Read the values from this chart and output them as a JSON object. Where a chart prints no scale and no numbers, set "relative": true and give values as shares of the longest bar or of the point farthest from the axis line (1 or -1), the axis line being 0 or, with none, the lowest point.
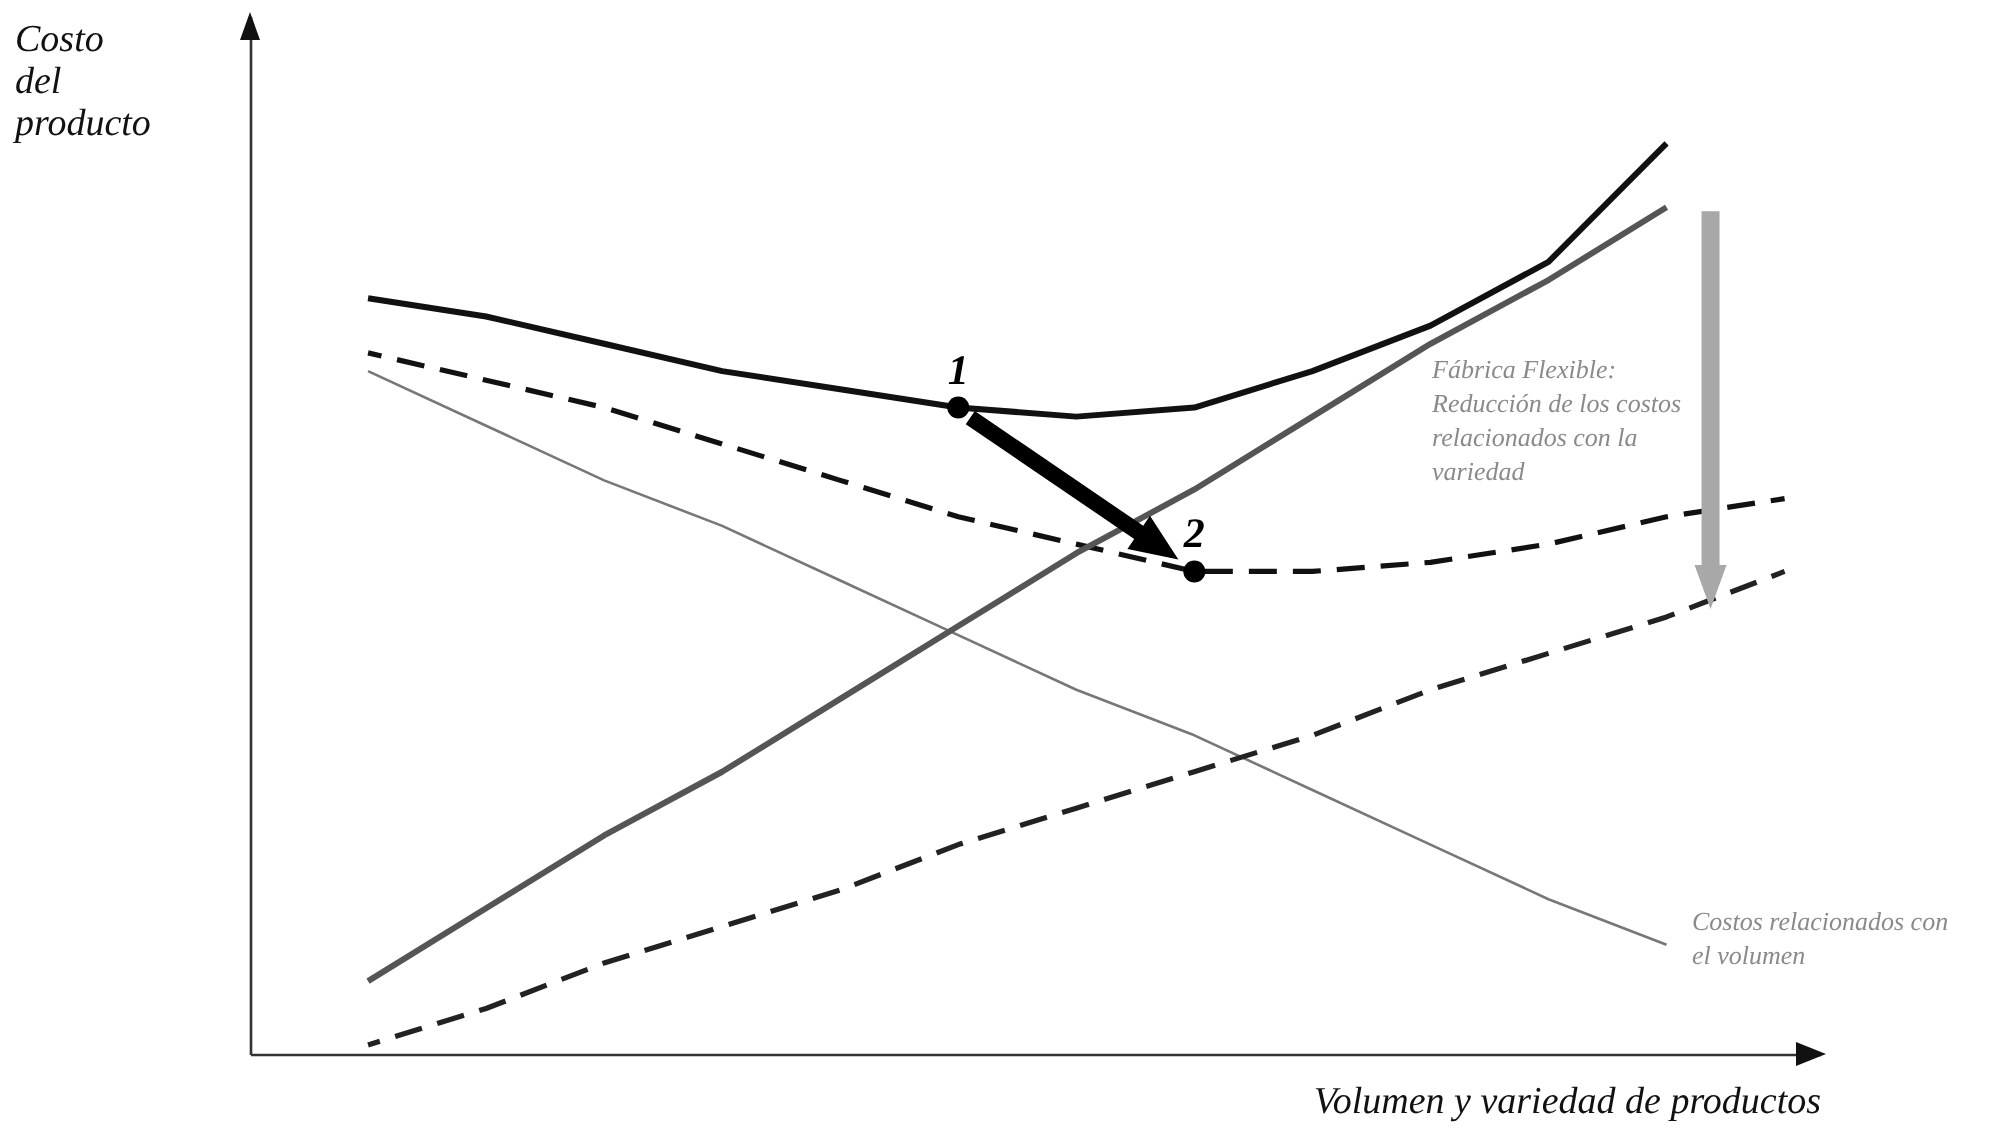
{
  "chart_data": {
    "type": "line",
    "relative": true,
    "xlabel": "Volumen y variedad de productos",
    "ylabel": "Costo del producto",
    "categories": [
      null,
      null,
      null,
      null,
      null,
      null,
      null,
      null,
      null,
      null,
      null,
      null,
      null
    ],
    "series": [
      {
        "color": "#111111",
        "line_style": "solid",
        "values": [
          0.83,
          0.81,
          0.78,
          0.75,
          0.73,
          0.71,
          0.7,
          0.71,
          0.75,
          0.8,
          0.87,
          1.0,
          null
        ]
      },
      {
        "color": "#111111",
        "line_style": "dashed",
        "values": [
          0.77,
          0.74,
          0.71,
          0.67,
          0.63,
          0.59,
          0.56,
          0.53,
          0.53,
          0.54,
          0.56,
          0.59,
          0.61
        ]
      },
      {
        "color": "#777777",
        "line_style": "solid",
        "values": [
          0.75,
          0.69,
          0.63,
          0.58,
          0.52,
          0.46,
          0.4,
          0.35,
          0.29,
          0.23,
          0.17,
          0.12,
          null
        ]
      },
      {
        "color": "#555555",
        "line_style": "solid",
        "values": [
          0.08,
          0.16,
          0.24,
          0.31,
          0.39,
          0.47,
          0.55,
          0.62,
          0.7,
          0.78,
          0.85,
          0.93,
          null
        ]
      },
      {
        "color": "#222222",
        "line_style": "dashed",
        "values": [
          0.01,
          0.05,
          0.1,
          0.14,
          0.18,
          0.23,
          0.27,
          0.31,
          0.35,
          0.4,
          0.44,
          0.48,
          0.53
        ]
      }
    ],
    "annotations": [
      "Fábrica Flexible: Reducción de los costos relacionados con la variedad",
      "Costos relacionados con el volumen",
      {
        "text": "1",
        "y": 0.71
      },
      {
        "text": "2",
        "y": 0.53
      }
    ]
  }
}
